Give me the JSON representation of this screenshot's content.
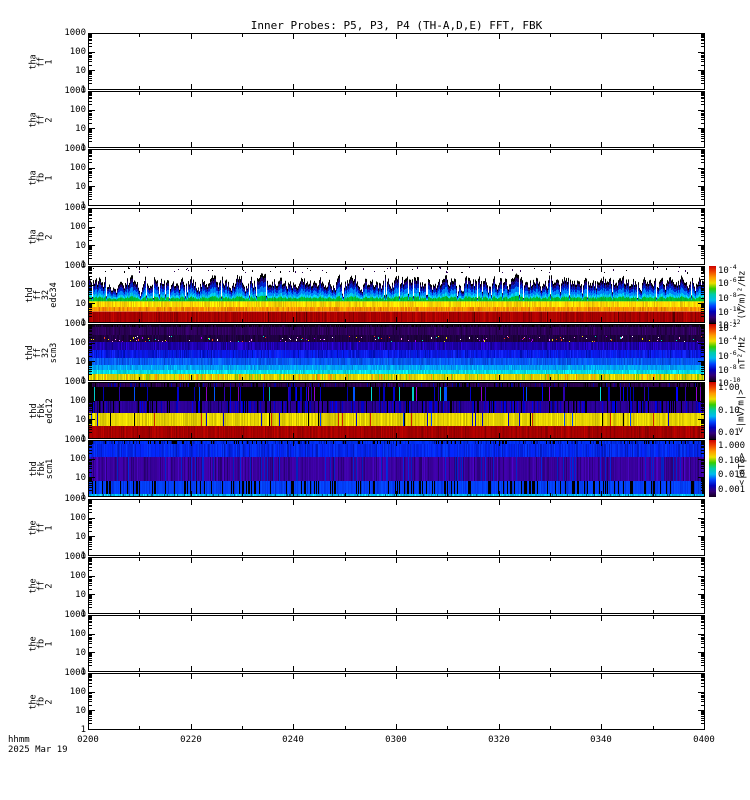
{
  "title": "Inner Probes: P5, P3, P4 (TH-A,D,E) FFT, FBK",
  "time_axis": {
    "label": "hhmm",
    "date": "2025 Mar 19",
    "start_minutes": 0,
    "end_minutes": 120,
    "major_tick_minutes": 20,
    "minor_tick_minutes": 10,
    "tick_labels": [
      "0200",
      "0220",
      "0240",
      "0300",
      "0320",
      "0340",
      "0400"
    ]
  },
  "frequency_axis": {
    "scale": "log",
    "range": [
      1,
      1000
    ],
    "tick_labels": [
      "1000",
      "100",
      "10",
      "1"
    ]
  },
  "panels": [
    {
      "id": "tha-ff-1",
      "label_lines": [
        "tha",
        "ff",
        "1"
      ],
      "has_data": false
    },
    {
      "id": "tha-ff-2",
      "label_lines": [
        "tha",
        "ff",
        "2"
      ],
      "has_data": false
    },
    {
      "id": "tha-fb-1",
      "label_lines": [
        "tha",
        "fb",
        "1"
      ],
      "has_data": false
    },
    {
      "id": "tha-fb-2",
      "label_lines": [
        "tha",
        "fb",
        "2"
      ],
      "has_data": false
    },
    {
      "id": "thd-ff-32-edc34",
      "label_lines": [
        "thd",
        "ff",
        "32",
        "edc34"
      ],
      "has_data": true
    },
    {
      "id": "thd-ff-32-scm3",
      "label_lines": [
        "thd",
        "ff",
        "32",
        "scm3"
      ],
      "has_data": true
    },
    {
      "id": "thd-fbk-edc12",
      "label_lines": [
        "thd",
        "fbk",
        "edc12"
      ],
      "has_data": true
    },
    {
      "id": "thd-fbk-scm1",
      "label_lines": [
        "thd",
        "fbk",
        "scm1"
      ],
      "has_data": true
    },
    {
      "id": "the-ff-1",
      "label_lines": [
        "the",
        "ff",
        "1"
      ],
      "has_data": false
    },
    {
      "id": "the-ff-2",
      "label_lines": [
        "the",
        "ff",
        "2"
      ],
      "has_data": false
    },
    {
      "id": "the-fb-1",
      "label_lines": [
        "the",
        "fb",
        "1"
      ],
      "has_data": false
    },
    {
      "id": "the-fb-2",
      "label_lines": [
        "the",
        "fb",
        "2"
      ],
      "has_data": false
    }
  ],
  "colorbar": {
    "rainbow_stops": [
      "#cc0000",
      "#ee4400",
      "#ff9900",
      "#eedd00",
      "#33cc00",
      "#00ccaa",
      "#00bbee",
      "#0044ff",
      "#0000bb",
      "#330077",
      "#15001f"
    ],
    "segments": [
      {
        "unit": "(V/m)²/Hz",
        "ticks": [
          {
            "label": "10^-4",
            "frac": 0.03
          },
          {
            "label": "10^-6",
            "frac": 0.27
          },
          {
            "label": "10^-8",
            "frac": 0.52
          },
          {
            "label": "10^-10",
            "frac": 0.77
          },
          {
            "label": "10^-12",
            "frac": 1.0
          }
        ]
      },
      {
        "unit": "nT²/Hz",
        "ticks": [
          {
            "label": "10^-2",
            "frac": 0.03
          },
          {
            "label": "10^-4",
            "frac": 0.27
          },
          {
            "label": "10^-6",
            "frac": 0.52
          },
          {
            "label": "10^-8",
            "frac": 0.77
          },
          {
            "label": "10^-10",
            "frac": 1.0
          }
        ]
      },
      {
        "unit": "<|mV/m|>",
        "ticks": [
          {
            "label": "1.00",
            "frac": 0.12
          },
          {
            "label": "0.10",
            "frac": 0.52
          },
          {
            "label": "0.01",
            "frac": 0.92
          }
        ]
      },
      {
        "unit": "<|nT|>",
        "ticks": [
          {
            "label": "1.000",
            "frac": 0.13
          },
          {
            "label": "0.100",
            "frac": 0.39
          },
          {
            "label": "0.010",
            "frac": 0.64
          },
          {
            "label": "0.001",
            "frac": 0.9
          }
        ]
      }
    ]
  },
  "chart_data": {
    "type": "heatmap",
    "layout": "12 stacked spectrogram panels sharing one time axis; colorbar segments apply to the four thd panels",
    "x_range": [
      "0200",
      "0400"
    ],
    "x_tick_labels": [
      "0200",
      "0220",
      "0240",
      "0300",
      "0320",
      "0340",
      "0400"
    ],
    "date": "2025 Mar 19",
    "y_scale": "log",
    "y_range": [
      1,
      1000
    ],
    "panels": [
      {
        "name": "tha ff 1",
        "data_present": false
      },
      {
        "name": "tha ff 2",
        "data_present": false
      },
      {
        "name": "tha fb 1",
        "data_present": false
      },
      {
        "name": "tha fb 2",
        "data_present": false
      },
      {
        "name": "thd ff 32 edc34",
        "data_present": true,
        "render": "fft_spikes",
        "value_scale": "(V/m)²/Hz 10^-4..10^-12",
        "spike_top_min": 0.1,
        "spike_top_max": 0.52,
        "top_dot_colors": [
          "#000000",
          "#2a0050"
        ],
        "spike_layers": [
          [
            "#000000",
            0.14
          ],
          [
            "#1a0070",
            0.14
          ],
          [
            "#0020cc",
            0.18
          ],
          [
            "#0080ff",
            0.2
          ],
          [
            "#00ccee",
            0.14
          ],
          [
            "#00bb33",
            0.2
          ]
        ],
        "yellow_zone": {
          "from": 0.62,
          "mid": 0.72,
          "to": 0.8,
          "upper": [
            "#ffee00",
            "#ffdd00",
            "#eecc00",
            "#ffcc00"
          ],
          "lower": [
            "#ff9900",
            "#ff8800",
            "#ee7700",
            "#ffaa00"
          ]
        },
        "red_band": {
          "from": 0.8,
          "colors": [
            "#aa0000",
            "#a30000",
            "#b80800",
            "#8f0000"
          ],
          "dark": "#550000"
        }
      },
      {
        "name": "thd ff 32 scm3",
        "data_present": true,
        "render": "bands",
        "value_scale": "nT²/Hz 10^-2..10^-10",
        "bands": [
          {
            "y0": 0.0,
            "y1": 0.06,
            "mode": "stripes",
            "colors": [
              "#10001f",
              "#1c0038",
              "#000000",
              "#24004a"
            ]
          },
          {
            "y0": 0.06,
            "y1": 0.2,
            "mode": "stripes",
            "colors": [
              "#2b0058",
              "#330068",
              "#200042",
              "#38006f"
            ]
          },
          {
            "y0": 0.2,
            "y1": 0.31,
            "mode": "speckle_row",
            "colors": [
              "#1d0040",
              "#170033",
              "#240050"
            ],
            "dots": [
              "#ffffff",
              "#ffee00",
              "#ff4422",
              "#00ffcc",
              "#aa00ff",
              "#ff88ff"
            ],
            "density": 0.25
          },
          {
            "y0": 0.31,
            "y1": 0.45,
            "mode": "stripes",
            "colors": [
              "#1c00aa",
              "#2404c4",
              "#14008a",
              "#2a00d4"
            ]
          },
          {
            "y0": 0.45,
            "y1": 0.59,
            "mode": "stripes",
            "colors": [
              "#0a18e0",
              "#0422f0",
              "#0010c0",
              "#1428ff"
            ]
          },
          {
            "y0": 0.59,
            "y1": 0.72,
            "mode": "stripes",
            "colors": [
              "#0455f5",
              "#0864ff",
              "#0347dd",
              "#0a70ff"
            ]
          },
          {
            "y0": 0.72,
            "y1": 0.8,
            "mode": "stripes",
            "colors": [
              "#00a0ff",
              "#00b4ff",
              "#0090ee",
              "#00c4ff"
            ]
          },
          {
            "y0": 0.8,
            "y1": 0.88,
            "mode": "stripes",
            "colors": [
              "#00d8e0",
              "#00e8f0",
              "#00c8d8",
              "#10f0ff"
            ]
          },
          {
            "y0": 0.88,
            "y1": 1.0,
            "mode": "stripes",
            "colors": [
              "#e0d000",
              "#f0e000",
              "#c8bb00",
              "#88cc00",
              "#ffee00",
              "#ff9900"
            ]
          }
        ]
      },
      {
        "name": "thd fbk edc12",
        "data_present": true,
        "render": "bands",
        "value_scale": "<|mV/m|> 0.01..1.00",
        "bands": [
          {
            "y0": 0.0,
            "y1": 0.09,
            "mode": "stripes",
            "colors": [
              "#28004f",
              "#1c0038",
              "#0000a0",
              "#000000",
              "#330066"
            ]
          },
          {
            "y0": 0.09,
            "y1": 0.34,
            "mode": "sparse_lines",
            "bg": "#000000",
            "colors": [
              "#0000c0",
              "#00cccc",
              "#2a00aa",
              "#0050ff",
              "#8800cc",
              "#0000ff"
            ],
            "density": 0.1
          },
          {
            "y0": 0.34,
            "y1": 0.55,
            "mode": "stripes",
            "colors": [
              "#2a0096",
              "#0000cc",
              "#32009e",
              "#14005a",
              "#0000e0",
              "#000000"
            ]
          },
          {
            "y0": 0.55,
            "y1": 0.77,
            "mode": "stripes",
            "colors": [
              "#e2cf00",
              "#eedd00",
              "#d4c200",
              "#f4e400"
            ],
            "overlay": [
              "#0000cc",
              "#000000",
              "#cc2200",
              "#0044ff"
            ],
            "overlay_density": 0.05
          },
          {
            "y0": 0.77,
            "y1": 1.0,
            "mode": "stripes",
            "colors": [
              "#a80000",
              "#9c0000",
              "#b40400",
              "#900000"
            ]
          }
        ]
      },
      {
        "name": "thd fbk scm1",
        "data_present": true,
        "render": "bands",
        "value_scale": "<|nT|> 0.001..1.000",
        "bands": [
          {
            "y0": 0.0,
            "y1": 0.07,
            "mode": "stripes",
            "colors": [
              "#0030f0",
              "#0028dd",
              "#001ab0",
              "#000000"
            ]
          },
          {
            "y0": 0.07,
            "y1": 0.3,
            "mode": "stripes",
            "colors": [
              "#0224ea",
              "#0430ff",
              "#011cc8",
              "#0338ff"
            ]
          },
          {
            "y0": 0.3,
            "y1": 0.72,
            "mode": "stripes",
            "colors": [
              "#3c00a2",
              "#4604b8",
              "#30008c",
              "#2a0078",
              "#0224cc"
            ]
          },
          {
            "y0": 0.72,
            "y1": 0.94,
            "mode": "stripes",
            "colors": [
              "#0340ff",
              "#0234e8",
              "#0448ff"
            ],
            "overlay": [
              "#000000"
            ],
            "overlay_density": 0.22
          },
          {
            "y0": 0.94,
            "y1": 1.0,
            "mode": "stripes",
            "colors": [
              "#00b8ec",
              "#00ccff",
              "#00a0d8",
              "#18e0ff",
              "#005588"
            ]
          }
        ]
      },
      {
        "name": "the ff 1",
        "data_present": false
      },
      {
        "name": "the ff 2",
        "data_present": false
      },
      {
        "name": "the fb 1",
        "data_present": false
      },
      {
        "name": "the fb 2",
        "data_present": false
      }
    ]
  }
}
